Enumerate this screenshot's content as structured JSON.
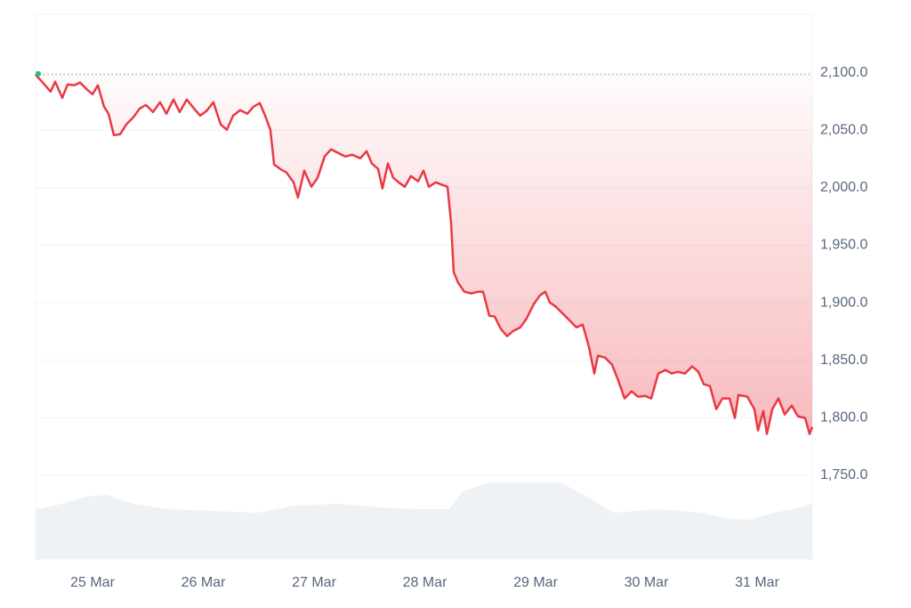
{
  "chart_data": {
    "type": "line",
    "color": "#ea3943",
    "up_color": "#16c784",
    "grid": true,
    "xlim": [
      24.486,
      31.498
    ],
    "ylim": [
      1677,
      2151
    ],
    "xticks": [
      {
        "value": 25,
        "label": "25 Mar"
      },
      {
        "value": 26,
        "label": "26 Mar"
      },
      {
        "value": 27,
        "label": "27 Mar"
      },
      {
        "value": 28,
        "label": "28 Mar"
      },
      {
        "value": 29,
        "label": "29 Mar"
      },
      {
        "value": 30,
        "label": "30 Mar"
      },
      {
        "value": 31,
        "label": "31 Mar"
      }
    ],
    "yticks": [
      {
        "value": 1750,
        "label": "1,750.0"
      },
      {
        "value": 1800,
        "label": "1,800.0"
      },
      {
        "value": 1850,
        "label": "1,850.0"
      },
      {
        "value": 1900,
        "label": "1,900.0"
      },
      {
        "value": 1950,
        "label": "1,950.0"
      },
      {
        "value": 2000,
        "label": "2,000.0"
      },
      {
        "value": 2050,
        "label": "2,050.0"
      },
      {
        "value": 2100,
        "label": "2,100.0"
      }
    ],
    "x": [
      24.486,
      24.566,
      24.622,
      24.663,
      24.727,
      24.775,
      24.831,
      24.888,
      24.944,
      25.0,
      25.048,
      25.104,
      25.145,
      25.193,
      25.249,
      25.305,
      25.369,
      25.426,
      25.482,
      25.546,
      25.61,
      25.667,
      25.731,
      25.787,
      25.851,
      25.916,
      25.972,
      26.028,
      26.092,
      26.157,
      26.213,
      26.269,
      26.333,
      26.398,
      26.454,
      26.51,
      26.558,
      26.606,
      26.639,
      26.695,
      26.751,
      26.815,
      26.855,
      26.912,
      26.976,
      27.032,
      27.096,
      27.153,
      27.217,
      27.281,
      27.345,
      27.418,
      27.474,
      27.522,
      27.578,
      27.618,
      27.667,
      27.715,
      27.763,
      27.819,
      27.875,
      27.94,
      27.988,
      28.036,
      28.1,
      28.157,
      28.205,
      28.237,
      28.261,
      28.301,
      28.357,
      28.422,
      28.478,
      28.526,
      28.582,
      28.631,
      28.687,
      28.743,
      28.799,
      28.863,
      28.92,
      28.984,
      29.04,
      29.088,
      29.128,
      29.185,
      29.241,
      29.305,
      29.369,
      29.426,
      29.482,
      29.53,
      29.562,
      29.627,
      29.691,
      29.747,
      29.803,
      29.867,
      29.924,
      29.988,
      30.044,
      30.108,
      30.173,
      30.229,
      30.285,
      30.349,
      30.414,
      30.47,
      30.518,
      30.574,
      30.631,
      30.687,
      30.751,
      30.799,
      30.831,
      30.912,
      30.976,
      31.008,
      31.056,
      31.088,
      31.137,
      31.193,
      31.249,
      31.313,
      31.369,
      31.434,
      31.474,
      31.498
    ],
    "values": [
      2098.5,
      2089.9,
      2083.7,
      2092.3,
      2078.3,
      2089.9,
      2089.2,
      2091.5,
      2086.1,
      2081.4,
      2089.2,
      2070.6,
      2064.4,
      2045.8,
      2046.6,
      2055.1,
      2061.3,
      2069.0,
      2072.1,
      2065.9,
      2074.5,
      2064.4,
      2076.8,
      2065.9,
      2076.8,
      2069.0,
      2062.8,
      2066.7,
      2074.5,
      2055.1,
      2050.5,
      2062.8,
      2067.5,
      2064.4,
      2070.6,
      2073.7,
      2062.8,
      2050.5,
      2020.3,
      2016.4,
      2013.3,
      2004.8,
      1991.6,
      2014.9,
      2000.9,
      2008.7,
      2027.2,
      2033.4,
      2030.3,
      2027.2,
      2028.8,
      2025.7,
      2031.9,
      2021.1,
      2016.4,
      1999.4,
      2021.1,
      2008.7,
      2004.8,
      2000.9,
      2010.2,
      2005.6,
      2014.9,
      2000.9,
      2004.8,
      2002.5,
      2000.9,
      1970.0,
      1926.6,
      1917.3,
      1909.6,
      1908.0,
      1909.6,
      1909.6,
      1888.7,
      1887.9,
      1877.1,
      1870.9,
      1875.5,
      1878.6,
      1886.4,
      1898.8,
      1906.5,
      1909.6,
      1900.3,
      1896.4,
      1891.0,
      1884.8,
      1878.6,
      1880.9,
      1861.6,
      1838.4,
      1853.9,
      1852.3,
      1846.1,
      1832.2,
      1816.7,
      1822.9,
      1818.3,
      1819.0,
      1816.7,
      1838.4,
      1841.5,
      1838.4,
      1839.9,
      1838.4,
      1844.6,
      1839.9,
      1829.1,
      1827.5,
      1807.4,
      1816.7,
      1816.7,
      1799.7,
      1819.8,
      1818.3,
      1807.4,
      1788.9,
      1805.9,
      1785.8,
      1807.4,
      1816.7,
      1802.8,
      1810.5,
      1801.2,
      1799.7,
      1785.8,
      1791.9
    ]
  }
}
